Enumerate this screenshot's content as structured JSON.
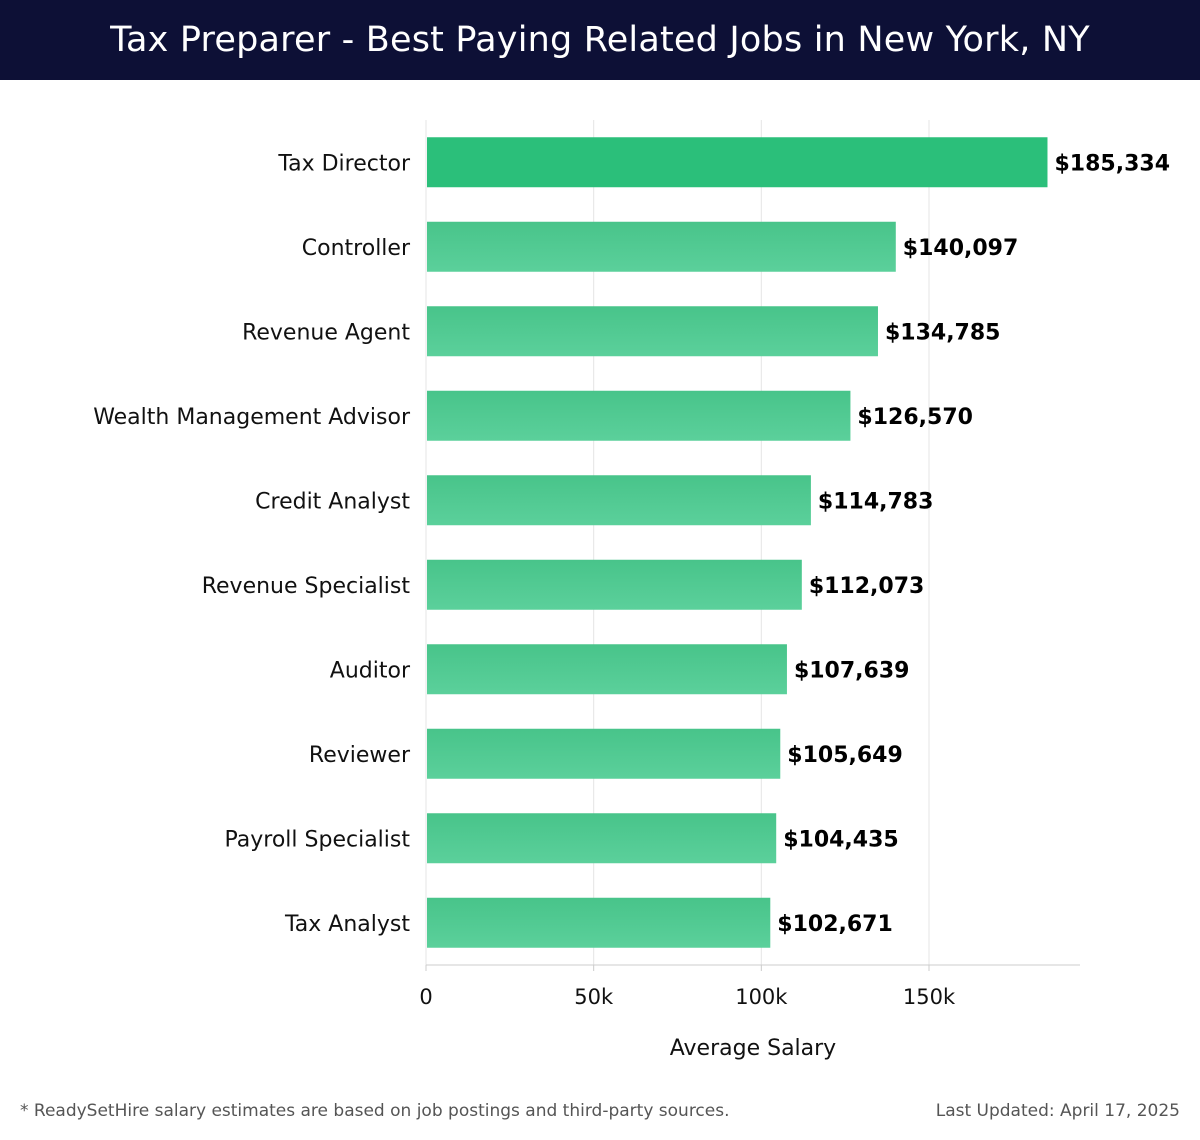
{
  "header": {
    "title": "Tax Preparer - Best Paying Related Jobs in New York, NY"
  },
  "chart_data": {
    "type": "bar",
    "orientation": "horizontal",
    "title": "Tax Preparer - Best Paying Related Jobs in New York, NY",
    "categories": [
      "Tax Director",
      "Controller",
      "Revenue Agent",
      "Wealth Management Advisor",
      "Credit Analyst",
      "Revenue Specialist",
      "Auditor",
      "Reviewer",
      "Payroll Specialist",
      "Tax Analyst"
    ],
    "values": [
      185334,
      140097,
      134785,
      126570,
      114783,
      112073,
      107639,
      105649,
      104435,
      102671
    ],
    "value_labels": [
      "$185,334",
      "$140,097",
      "$134,785",
      "$126,570",
      "$114,783",
      "$112,073",
      "$107,639",
      "$105,649",
      "$104,435",
      "$102,671"
    ],
    "xlabel": "Average Salary",
    "ylabel": "",
    "xlim": [
      0,
      194000
    ],
    "xticks": [
      0,
      50000,
      100000,
      150000
    ],
    "xtick_labels": [
      "0",
      "50k",
      "100k",
      "150k"
    ],
    "grid": true,
    "colors": {
      "bar_top": "#2bbf7a",
      "bar_gradient_start": "#48c48a",
      "bar_gradient_end": "#5bd09b",
      "grid": "#e5e5e5",
      "axis": "#cccccc"
    }
  },
  "footer": {
    "note": "* ReadySetHire salary estimates are based on job postings and third-party sources.",
    "updated": "Last Updated: April 17, 2025"
  }
}
